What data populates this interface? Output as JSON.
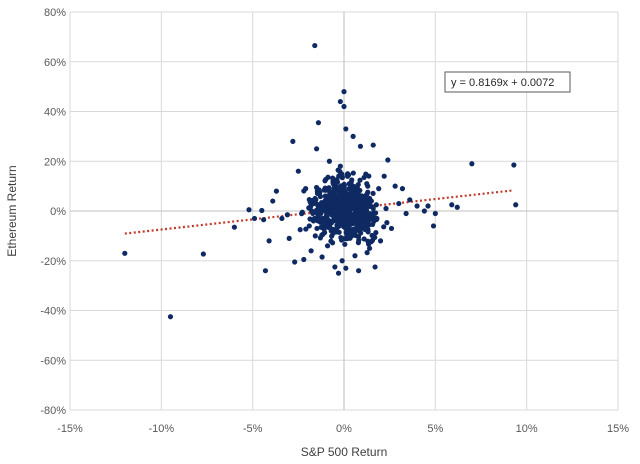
{
  "chart_data": {
    "type": "scatter",
    "title": "",
    "xlabel": "S&P 500 Return",
    "ylabel": "Ethereum Return",
    "xlim": [
      -0.15,
      0.15
    ],
    "ylim": [
      -0.8,
      0.8
    ],
    "x_ticks": [
      -0.15,
      -0.1,
      -0.05,
      0.0,
      0.05,
      0.1,
      0.15
    ],
    "x_tick_labels": [
      "-15%",
      "-10%",
      "-5%",
      "0%",
      "5%",
      "10%",
      "15%"
    ],
    "y_ticks": [
      0.8,
      0.6,
      0.4,
      0.2,
      0.0,
      -0.2,
      -0.4,
      -0.6,
      -0.8
    ],
    "y_tick_labels": [
      "80%",
      "60%",
      "40%",
      "20%",
      "0%",
      "-20%",
      "-40%",
      "-60%",
      "-80%"
    ],
    "grid": true,
    "point_color": "#0f2a63",
    "trendline": {
      "equation_label": "y = 0.8169x + 0.0072",
      "slope": 0.8169,
      "intercept": 0.0072,
      "x_range": [
        -0.12,
        0.093
      ],
      "style": "dotted",
      "color": "#c0392b"
    },
    "series": [
      {
        "points": [
          [
            -0.12,
            -0.17
          ],
          [
            -0.095,
            -0.425
          ],
          [
            -0.077,
            -0.173
          ],
          [
            -0.06,
            -0.065
          ],
          [
            -0.052,
            0.005
          ],
          [
            -0.049,
            -0.03
          ],
          [
            -0.045,
            0.002
          ],
          [
            -0.044,
            -0.035
          ],
          [
            -0.043,
            -0.24
          ],
          [
            -0.041,
            -0.12
          ],
          [
            -0.039,
            0.04
          ],
          [
            -0.037,
            0.08
          ],
          [
            -0.034,
            -0.03
          ],
          [
            -0.031,
            -0.015
          ],
          [
            -0.03,
            -0.11
          ],
          [
            -0.028,
            0.28
          ],
          [
            -0.027,
            -0.205
          ],
          [
            -0.025,
            0.16
          ],
          [
            -0.024,
            -0.075
          ],
          [
            -0.022,
            -0.195
          ],
          [
            -0.021,
            0.09
          ],
          [
            -0.019,
            -0.06
          ],
          [
            -0.018,
            -0.16
          ],
          [
            -0.016,
            0.665
          ],
          [
            -0.015,
            0.25
          ],
          [
            -0.014,
            0.355
          ],
          [
            -0.013,
            -0.045
          ],
          [
            -0.012,
            -0.185
          ],
          [
            -0.01,
            0.06
          ],
          [
            -0.009,
            -0.14
          ],
          [
            -0.008,
            0.2
          ],
          [
            -0.007,
            -0.08
          ],
          [
            -0.006,
            0.12
          ],
          [
            -0.005,
            -0.225
          ],
          [
            -0.004,
            0.05
          ],
          [
            -0.003,
            -0.25
          ],
          [
            -0.002,
            0.44
          ],
          [
            -0.002,
            0.18
          ],
          [
            -0.001,
            -0.2
          ],
          [
            0.0,
            0.48
          ],
          [
            0.0,
            0.42
          ],
          [
            0.001,
            0.33
          ],
          [
            0.001,
            -0.23
          ],
          [
            0.002,
            0.15
          ],
          [
            0.003,
            0.02
          ],
          [
            0.004,
            -0.1
          ],
          [
            0.005,
            0.3
          ],
          [
            0.006,
            -0.18
          ],
          [
            0.007,
            0.07
          ],
          [
            0.008,
            -0.24
          ],
          [
            0.009,
            0.26
          ],
          [
            0.01,
            0.01
          ],
          [
            0.011,
            0.135
          ],
          [
            0.012,
            -0.065
          ],
          [
            0.013,
            0.1
          ],
          [
            0.014,
            -0.15
          ],
          [
            0.015,
            0.04
          ],
          [
            0.016,
            0.265
          ],
          [
            0.017,
            -0.225
          ],
          [
            0.018,
            -0.03
          ],
          [
            0.019,
            0.09
          ],
          [
            0.02,
            -0.12
          ],
          [
            0.022,
            0.14
          ],
          [
            0.023,
            0.01
          ],
          [
            0.024,
            0.205
          ],
          [
            0.026,
            -0.07
          ],
          [
            0.028,
            0.1
          ],
          [
            0.03,
            0.03
          ],
          [
            0.032,
            0.09
          ],
          [
            0.034,
            -0.01
          ],
          [
            0.036,
            0.045
          ],
          [
            0.04,
            0.02
          ],
          [
            0.044,
            0.0
          ],
          [
            0.046,
            0.02
          ],
          [
            0.049,
            -0.06
          ],
          [
            0.05,
            -0.01
          ],
          [
            0.059,
            0.025
          ],
          [
            0.062,
            0.015
          ],
          [
            0.07,
            0.19
          ],
          [
            0.093,
            0.185
          ],
          [
            0.094,
            0.025
          ]
        ]
      }
    ]
  }
}
